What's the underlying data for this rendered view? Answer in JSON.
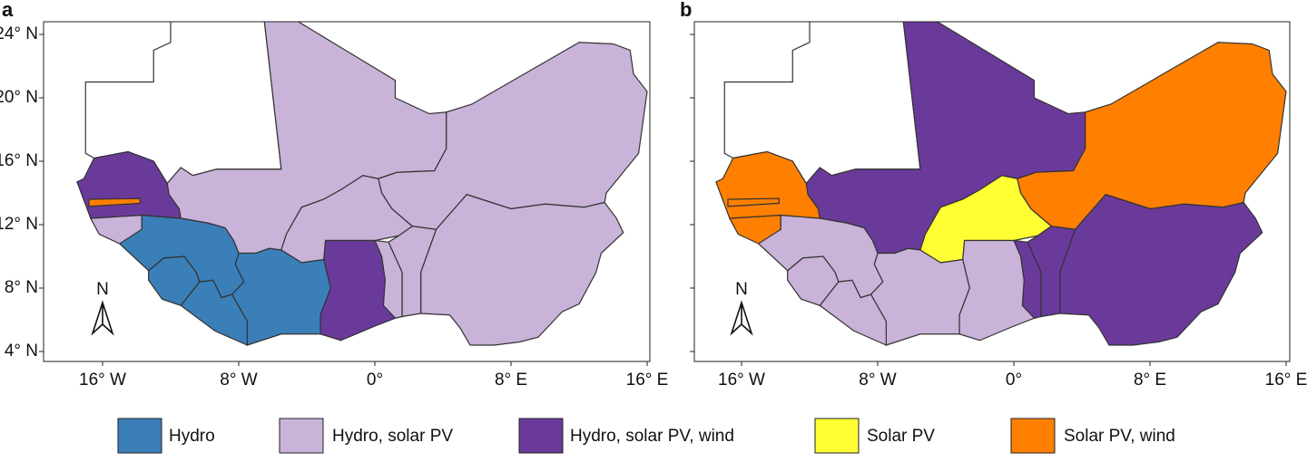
{
  "panels": [
    {
      "label": "a"
    },
    {
      "label": "b"
    }
  ],
  "latitude_labels": [
    "24° N",
    "20° N",
    "16° N",
    "12° N",
    "8° N",
    "4° N"
  ],
  "longitude_labels": [
    "16° W",
    "8° W",
    "0°",
    "8° E",
    "16° E"
  ],
  "north_label": "N",
  "legend": [
    {
      "name": "Hydro",
      "color": "#3a7fb8"
    },
    {
      "name": "Hydro, solar PV",
      "color": "#c9b3d9"
    },
    {
      "name": "Hydro, solar PV, wind",
      "color": "#6a3a9a"
    },
    {
      "name": "Solar PV",
      "color": "#ffff33"
    },
    {
      "name": "Solar PV, wind",
      "color": "#ff7f00"
    }
  ]
}
